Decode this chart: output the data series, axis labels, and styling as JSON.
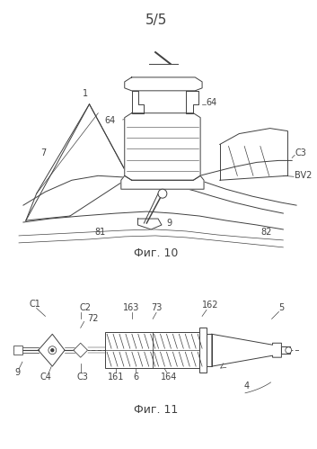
{
  "title": "5/5",
  "fig10_label": "Фиг. 10",
  "fig11_label": "Фиг. 11",
  "bg_color": "#ffffff",
  "line_color": "#404040",
  "fig_title_fontsize": 11,
  "label_fontsize": 7,
  "caption_fontsize": 9
}
